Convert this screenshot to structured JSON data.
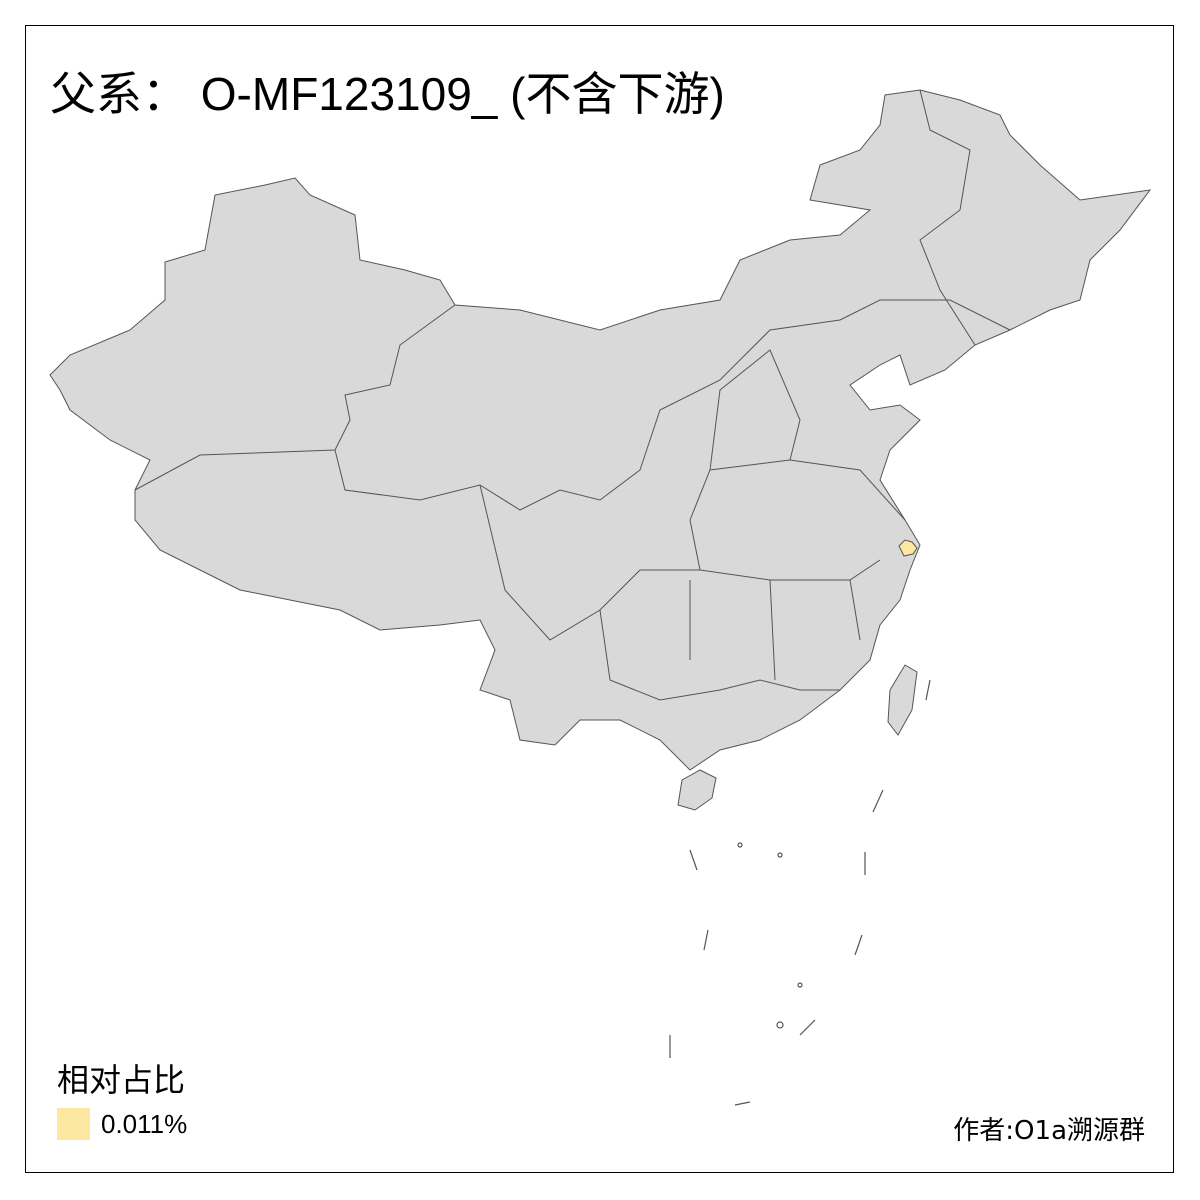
{
  "title": "父系： O-MF123109_ (不含下游)",
  "legend": {
    "title": "相对占比",
    "items": [
      {
        "label": "0.011%",
        "color": "#FDE8A2"
      }
    ]
  },
  "author": "作者:O1a溯源群",
  "colors": {
    "land": "#D9D9D9",
    "border": "#555555",
    "highlight": "#FDE8A2"
  },
  "highlighted_regions": [
    {
      "region": "上海",
      "value": "0.011%"
    }
  ]
}
